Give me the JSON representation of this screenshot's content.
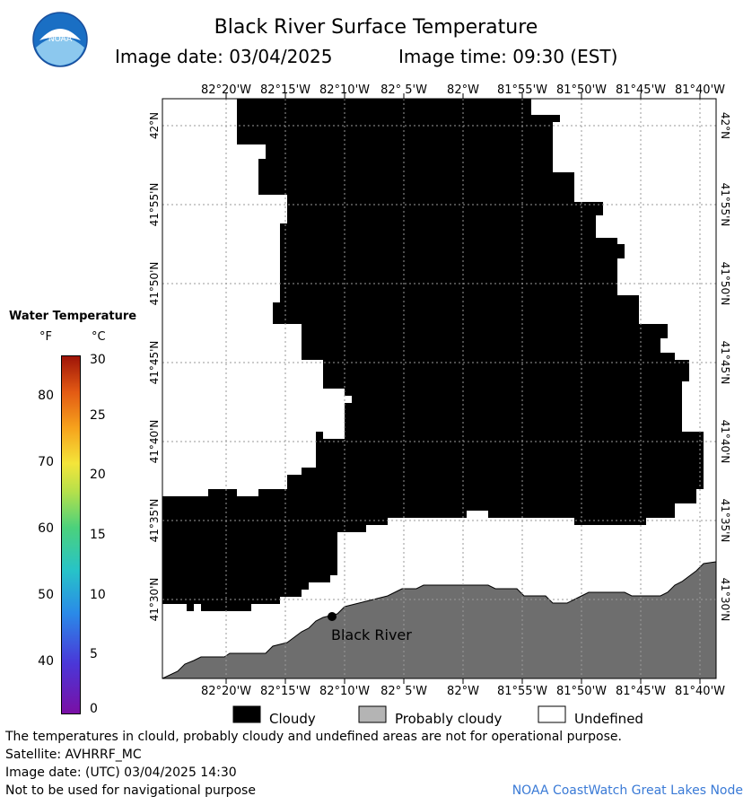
{
  "header": {
    "title": "Black River Surface Temperature",
    "image_date": "Image date: 03/04/2025",
    "image_time": "Image time: 09:30 (EST)",
    "logo_text": "NOAA"
  },
  "map": {
    "lon_labels": [
      "82°20'W",
      "82°15'W",
      "82°10'W",
      "82° 5'W",
      "82°W",
      "81°55'W",
      "81°50'W",
      "81°45'W",
      "81°40'W"
    ],
    "lat_labels": [
      "42°N",
      "41°55'N",
      "41°50'N",
      "41°45'N",
      "41°40'N",
      "41°35'N",
      "41°30'N"
    ],
    "location_label": "Black River",
    "colors": {
      "cloudy": "#000000",
      "land": "#6e6e6e",
      "undefined": "#ffffff",
      "grid": "#9a9a9a"
    }
  },
  "legend": {
    "title": "Water Temperature",
    "unit_f": "°F",
    "unit_c": "°C",
    "f_ticks": [
      "80",
      "70",
      "60",
      "50",
      "40"
    ],
    "c_ticks": [
      "30",
      "25",
      "20",
      "15",
      "10",
      "5",
      "0"
    ],
    "items": [
      {
        "label": "Cloudy",
        "color": "#000000"
      },
      {
        "label": "Probably cloudy",
        "color": "#b4b4b4"
      },
      {
        "label": "Undefined",
        "color": "#ffffff"
      }
    ]
  },
  "footer": {
    "disclaimer": "The temperatures in clould, probably cloudy and undefined areas are not for operational purpose.",
    "satellite": "Satellite: AVHRRF_MC",
    "image_date_utc": "Image date: (UTC) 03/04/2025  14:30",
    "nav_warning": "Not to be used for navigational purpose",
    "credit": "NOAA CoastWatch Great Lakes Node"
  }
}
